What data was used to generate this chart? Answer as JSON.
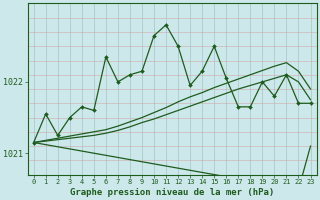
{
  "bg_color": "#cde8ea",
  "plot_bg_color": "#cde8ea",
  "grid_color": "#a8cccc",
  "line_color": "#1e5c1e",
  "text_color": "#1e5c1e",
  "xlabel": "Graphe pression niveau de la mer (hPa)",
  "yticks": [
    1021,
    1022
  ],
  "xlim": [
    -0.5,
    23.5
  ],
  "ylim": [
    1020.7,
    1023.1
  ],
  "main_line": [
    1021.15,
    1021.55,
    1021.25,
    1021.5,
    1021.65,
    1021.6,
    1022.35,
    1022.0,
    1022.1,
    1022.15,
    1022.65,
    1022.8,
    1022.5,
    1021.95,
    1022.15,
    1022.5,
    1022.05,
    1021.65,
    1021.65,
    1022.0,
    1021.8,
    1022.1,
    1021.7,
    1021.7
  ],
  "trend_high": [
    1021.15,
    1021.18,
    1021.21,
    1021.24,
    1021.27,
    1021.3,
    1021.33,
    1021.38,
    1021.44,
    1021.5,
    1021.57,
    1021.64,
    1021.72,
    1021.79,
    1021.85,
    1021.92,
    1021.98,
    1022.04,
    1022.1,
    1022.16,
    1022.22,
    1022.27,
    1022.15,
    1021.9
  ],
  "trend_mid": [
    1021.15,
    1021.17,
    1021.19,
    1021.21,
    1021.23,
    1021.25,
    1021.28,
    1021.32,
    1021.37,
    1021.43,
    1021.48,
    1021.54,
    1021.6,
    1021.66,
    1021.72,
    1021.78,
    1021.84,
    1021.9,
    1021.95,
    1022.0,
    1022.05,
    1022.1,
    1022.0,
    1021.75
  ],
  "trend_low": [
    1021.15,
    1021.12,
    1021.09,
    1021.06,
    1021.03,
    1021.0,
    1020.97,
    1020.94,
    1020.91,
    1020.88,
    1020.85,
    1020.82,
    1020.79,
    1020.76,
    1020.73,
    1020.7,
    1020.67,
    1020.64,
    1020.61,
    1020.58,
    1020.55,
    1020.52,
    1020.49,
    1021.1
  ],
  "figsize": [
    3.2,
    2.0
  ],
  "dpi": 100
}
